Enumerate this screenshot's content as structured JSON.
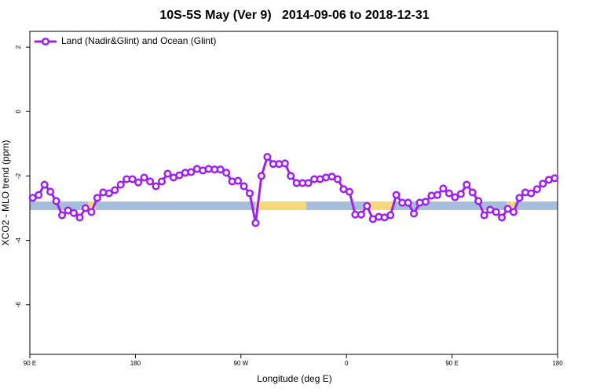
{
  "chart_data": {
    "type": "line",
    "title": "10S-5S May (Ver 9)   2014-09-06 to 2018-12-31",
    "x_label": "Longitude (deg E)",
    "y_label": "XCO2 - MLO trend (ppm)",
    "xlim": [
      90,
      540
    ],
    "xticks": [
      {
        "value": 90,
        "label": "90 E"
      },
      180,
      {
        "value": 270,
        "label": "90 W"
      },
      {
        "value": 360,
        "label": "0"
      },
      {
        "value": 450,
        "label": "90 E"
      },
      {
        "value": 540,
        "label": "180"
      }
    ],
    "ylim": [
      -7.54,
      2.49
    ],
    "yticks": [
      2,
      0,
      -2,
      -4,
      -6
    ],
    "legend": "top-left",
    "x": [
      92.5,
      97.5,
      102.5,
      107.5,
      112.5,
      117.5,
      122.5,
      127.5,
      132.5,
      137.5,
      142.5,
      147.5,
      152.5,
      157.5,
      162.5,
      167.5,
      172.5,
      177.5,
      182.5,
      187.5,
      192.5,
      197.5,
      202.5,
      207.5,
      212.5,
      217.5,
      222.5,
      227.5,
      232.5,
      237.5,
      242.5,
      247.5,
      252.5,
      257.5,
      262.5,
      267.5,
      272.5,
      277.5,
      282.5,
      287.5,
      292.5,
      297.5,
      302.5,
      307.5,
      312.5,
      317.5,
      322.5,
      327.5,
      332.5,
      337.5,
      342.5,
      347.5,
      352.5,
      357.5,
      362.5,
      367.5,
      372.5,
      377.5,
      382.5,
      387.5,
      392.5,
      397.5,
      402.5,
      407.5,
      412.5,
      417.5,
      422.5,
      427.5,
      432.5,
      437.5,
      442.5,
      447.5,
      452.5,
      457.5,
      462.5,
      467.5,
      472.5,
      477.5,
      482.5,
      487.5,
      492.5,
      497.5,
      502.5,
      507.5,
      512.5,
      517.5,
      522.5,
      527.5,
      532.5,
      537.5
    ],
    "series": [
      {
        "name": "Land (Nadir&Glint) and Ocean (Glint)",
        "color": "#a020f0",
        "values": [
          -2.68,
          -2.59,
          -2.27,
          -2.49,
          -2.78,
          -3.22,
          -3.07,
          -3.15,
          -3.29,
          -3.0,
          -3.12,
          -2.68,
          -2.51,
          -2.54,
          -2.44,
          -2.27,
          -2.1,
          -2.1,
          -2.2,
          -2.05,
          -2.17,
          -2.32,
          -2.17,
          -1.93,
          -2.05,
          -1.98,
          -1.9,
          -1.88,
          -1.78,
          -1.83,
          -1.78,
          -1.8,
          -1.8,
          -1.9,
          -2.17,
          -2.15,
          -2.32,
          -2.54,
          -3.46,
          -2.0,
          -1.41,
          -1.63,
          -1.63,
          -1.61,
          -2.0,
          -2.22,
          -2.22,
          -2.22,
          -2.1,
          -2.1,
          -2.05,
          -2.02,
          -2.1,
          -2.41,
          -2.49,
          -3.2,
          -3.2,
          -2.93,
          -3.34,
          -3.27,
          -3.29,
          -3.22,
          -2.59,
          -2.83,
          -2.83,
          -3.17,
          -2.83,
          -2.8,
          -2.61,
          -2.59,
          -2.39,
          -2.54,
          -2.66,
          -2.56,
          -2.27,
          -2.51,
          -2.78,
          -3.22,
          -3.05,
          -3.12,
          -3.29,
          -3.02,
          -3.12,
          -2.68,
          -2.51,
          -2.54,
          -2.41,
          -2.24,
          -2.12,
          -2.07
        ]
      }
    ]
  }
}
